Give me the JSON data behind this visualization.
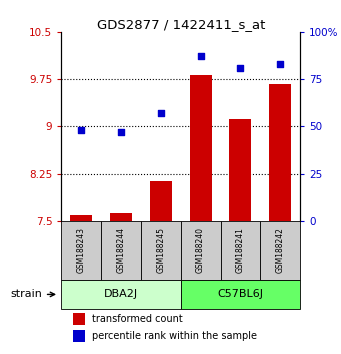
{
  "title": "GDS2877 / 1422411_s_at",
  "samples": [
    "GSM188243",
    "GSM188244",
    "GSM188245",
    "GSM188240",
    "GSM188241",
    "GSM188242"
  ],
  "group_labels": [
    "DBA2J",
    "C57BL6J"
  ],
  "group_colors": [
    "#ccffcc",
    "#66ff66"
  ],
  "group_split": 3,
  "transformed_counts": [
    7.6,
    7.62,
    8.14,
    9.82,
    9.12,
    9.68
  ],
  "percentile_ranks": [
    48,
    47,
    57,
    87,
    81,
    83
  ],
  "bar_color": "#cc0000",
  "dot_color": "#0000cc",
  "ylim_left": [
    7.5,
    10.5
  ],
  "ylim_right": [
    0,
    100
  ],
  "yticks_left": [
    7.5,
    8.25,
    9.0,
    9.75,
    10.5
  ],
  "ytick_labels_left": [
    "7.5",
    "8.25",
    "9",
    "9.75",
    "10.5"
  ],
  "yticks_right": [
    0,
    25,
    50,
    75,
    100
  ],
  "ytick_labels_right": [
    "0",
    "25",
    "50",
    "75",
    "100%"
  ],
  "hlines": [
    8.25,
    9.0,
    9.75
  ],
  "left_tick_color": "#cc0000",
  "right_tick_color": "#0000cc",
  "bar_bottom": 7.5,
  "sample_box_color": "#cccccc",
  "strain_label": "strain",
  "legend_entries": [
    "transformed count",
    "percentile rank within the sample"
  ]
}
